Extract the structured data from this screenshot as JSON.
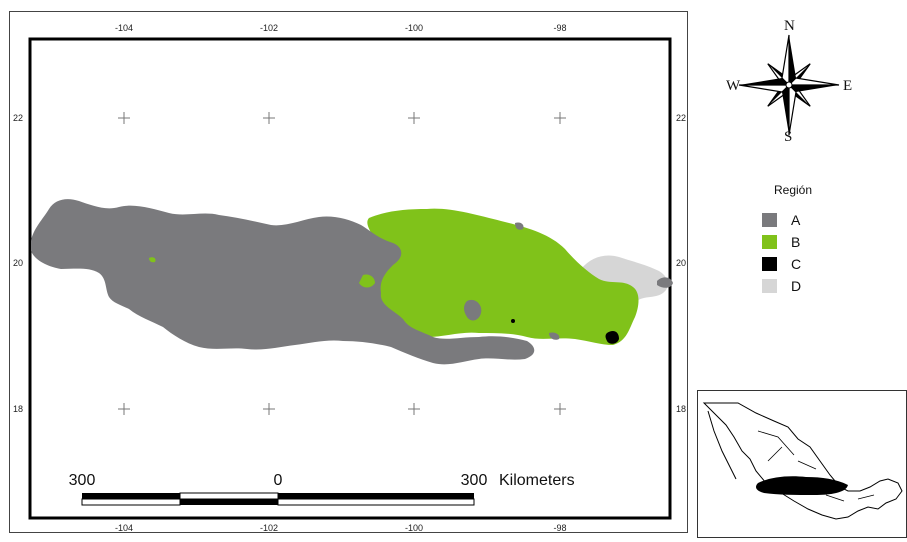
{
  "map": {
    "lon_ticks": [
      "-104",
      "-102",
      "-100",
      "-98"
    ],
    "lat_ticks": [
      "22",
      "20",
      "18"
    ],
    "scale_bar": {
      "left_label": "300",
      "center_label": "0",
      "right_label": "300",
      "unit": "Kilometers"
    }
  },
  "compass": {
    "north": "N",
    "south": "S",
    "east": "E",
    "west": "W"
  },
  "legend": {
    "title": "Región",
    "items": [
      {
        "label": "A",
        "color": "#7a7a7d"
      },
      {
        "label": "B",
        "color": "#80c21a"
      },
      {
        "label": "C",
        "color": "#000000"
      },
      {
        "label": "D",
        "color": "#d6d6d6"
      }
    ]
  },
  "colors": {
    "region_a": "#7a7a7d",
    "region_b": "#80c21a",
    "region_c": "#000000",
    "region_d": "#d6d6d6"
  },
  "icons": [
    "compass-rose-icon",
    "mexico-inset-map"
  ]
}
